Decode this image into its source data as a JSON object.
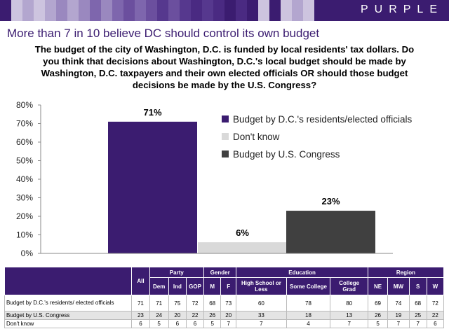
{
  "brand": "PURPLE",
  "headline": "More than 7 in 10 believe DC should control its own budget",
  "question": "The budget of the city of Washington, D.C. is funded by local residents' tax dollars. Do you think that decisions about Washington, D.C.'s local budget should be made by Washington, D.C. taxpayers and their own elected officials OR should those budget decisions be made by the U.S. Congress?",
  "colors": {
    "purple": "#3b1c70",
    "light_gray": "#d9d9d9",
    "dark_gray": "#404040"
  },
  "chart_data": {
    "type": "bar",
    "categories": [
      "Budget by D.C.'s residents/elected officials",
      "Don't know",
      "Budget by U.S. Congress"
    ],
    "values": [
      71,
      6,
      23
    ],
    "data_labels": [
      "71%",
      "6%",
      "23%"
    ],
    "colors": [
      "#3b1c70",
      "#d9d9d9",
      "#404040"
    ],
    "ylim": [
      0,
      80
    ],
    "yticks": [
      0,
      10,
      20,
      30,
      40,
      50,
      60,
      70,
      80
    ],
    "ytick_labels": [
      "0%",
      "10%",
      "20%",
      "30%",
      "40%",
      "50%",
      "60%",
      "70%",
      "80%"
    ],
    "legend": [
      "Budget by D.C.'s residents/elected officials",
      "Don't know",
      "Budget by U.S. Congress"
    ],
    "legend_position": "top-right",
    "title": "",
    "xlabel": "",
    "ylabel": ""
  },
  "table": {
    "groups": {
      "party": "Party",
      "gender": "Gender",
      "education": "Education",
      "region": "Region"
    },
    "columns": {
      "all": "All",
      "dem": "Dem",
      "ind": "Ind",
      "gop": "GOP",
      "m": "M",
      "f": "F",
      "hs": "High School or Less",
      "some": "Some College",
      "grad": "College Grad",
      "ne": "NE",
      "mw": "MW",
      "s": "S",
      "w": "W"
    },
    "rows": [
      {
        "label": "Budget by D.C.'s residents/ elected officials",
        "values": [
          "71",
          "71",
          "75",
          "72",
          "68",
          "73",
          "60",
          "78",
          "80",
          "69",
          "74",
          "68",
          "72"
        ]
      },
      {
        "label": "Budget by U.S. Congress",
        "values": [
          "23",
          "24",
          "20",
          "22",
          "26",
          "20",
          "33",
          "18",
          "13",
          "26",
          "19",
          "25",
          "22"
        ]
      },
      {
        "label": "Don't know",
        "values": [
          "6",
          "5",
          "6",
          "6",
          "5",
          "7",
          "7",
          "4",
          "7",
          "5",
          "7",
          "7",
          "6"
        ]
      }
    ]
  }
}
